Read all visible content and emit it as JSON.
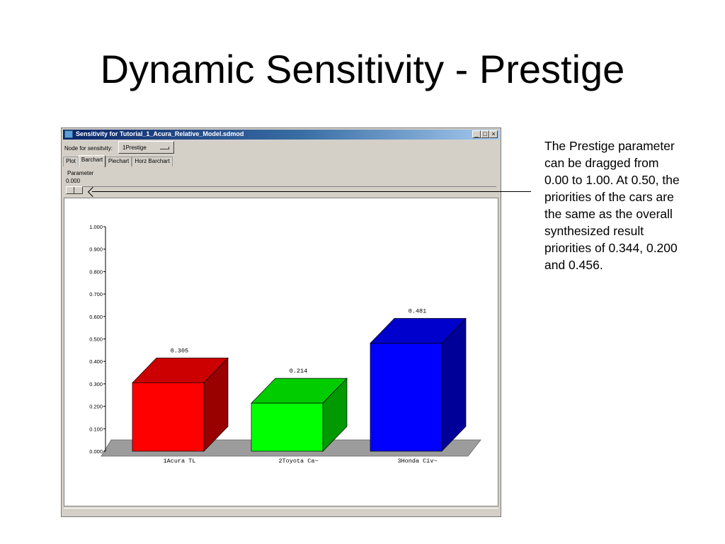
{
  "slide": {
    "title": "Dynamic Sensitivity - Prestige",
    "note": "The Prestige parameter can be dragged from 0.00 to 1.00. At 0.50, the priorities of the cars are the same as the overall synthesized result priorities of 0.344, 0.200 and 0.456."
  },
  "window": {
    "title": "Sensitivity for Tutorial_1_Acura_Relative_Model.sdmod",
    "controls": [
      "_",
      "□",
      "×"
    ],
    "node_label": "Node for sensitvity:",
    "node_value": "1Prestige",
    "tabs": [
      "Plot",
      "Barchart",
      "Piechart",
      "Horz Barchart"
    ],
    "active_tab": "Barchart",
    "parameter_label": "Parameter",
    "parameter_value": "0.000"
  },
  "chart_data": {
    "type": "bar",
    "categories": [
      "1Acura TL",
      "2Toyota Ca~",
      "3Honda Civ~"
    ],
    "values": [
      0.305,
      0.214,
      0.481
    ],
    "value_labels": [
      "0.305",
      "0.214",
      "0.481"
    ],
    "colors": [
      "#ff0000",
      "#00ff00",
      "#0000ff"
    ],
    "ylim": [
      0,
      1
    ],
    "yticks": [
      "0.000",
      "0.100",
      "0.200",
      "0.300",
      "0.400",
      "0.500",
      "0.600",
      "0.700",
      "0.800",
      "0.900",
      "1.000"
    ],
    "style": "3d"
  }
}
